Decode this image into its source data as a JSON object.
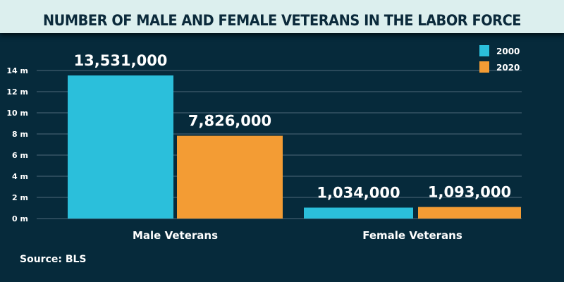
{
  "chart_data": {
    "type": "bar",
    "title": "NUMBER OF MALE AND FEMALE VETERANS IN THE LABOR FORCE",
    "categories": [
      "Male Veterans",
      "Female Veterans"
    ],
    "series": [
      {
        "name": "2000",
        "values": [
          13531000,
          1034000
        ],
        "labels": [
          "13,531,000",
          "1,034,000"
        ],
        "color": "#2bbfdb"
      },
      {
        "name": "2020",
        "values": [
          7826000,
          1093000
        ],
        "labels": [
          "7,826,000",
          "1,093,000"
        ],
        "color": "#f39c34"
      }
    ],
    "yticks": [
      0,
      2000000,
      4000000,
      6000000,
      8000000,
      10000000,
      12000000,
      14000000
    ],
    "ytick_labels": [
      "0 m",
      "2 m",
      "4 m",
      "6 m",
      "8 m",
      "10 m",
      "12 m",
      "14 m"
    ],
    "ylim": [
      0,
      14000000
    ],
    "grid": true,
    "legend": "top-right"
  },
  "source": "Source: BLS"
}
